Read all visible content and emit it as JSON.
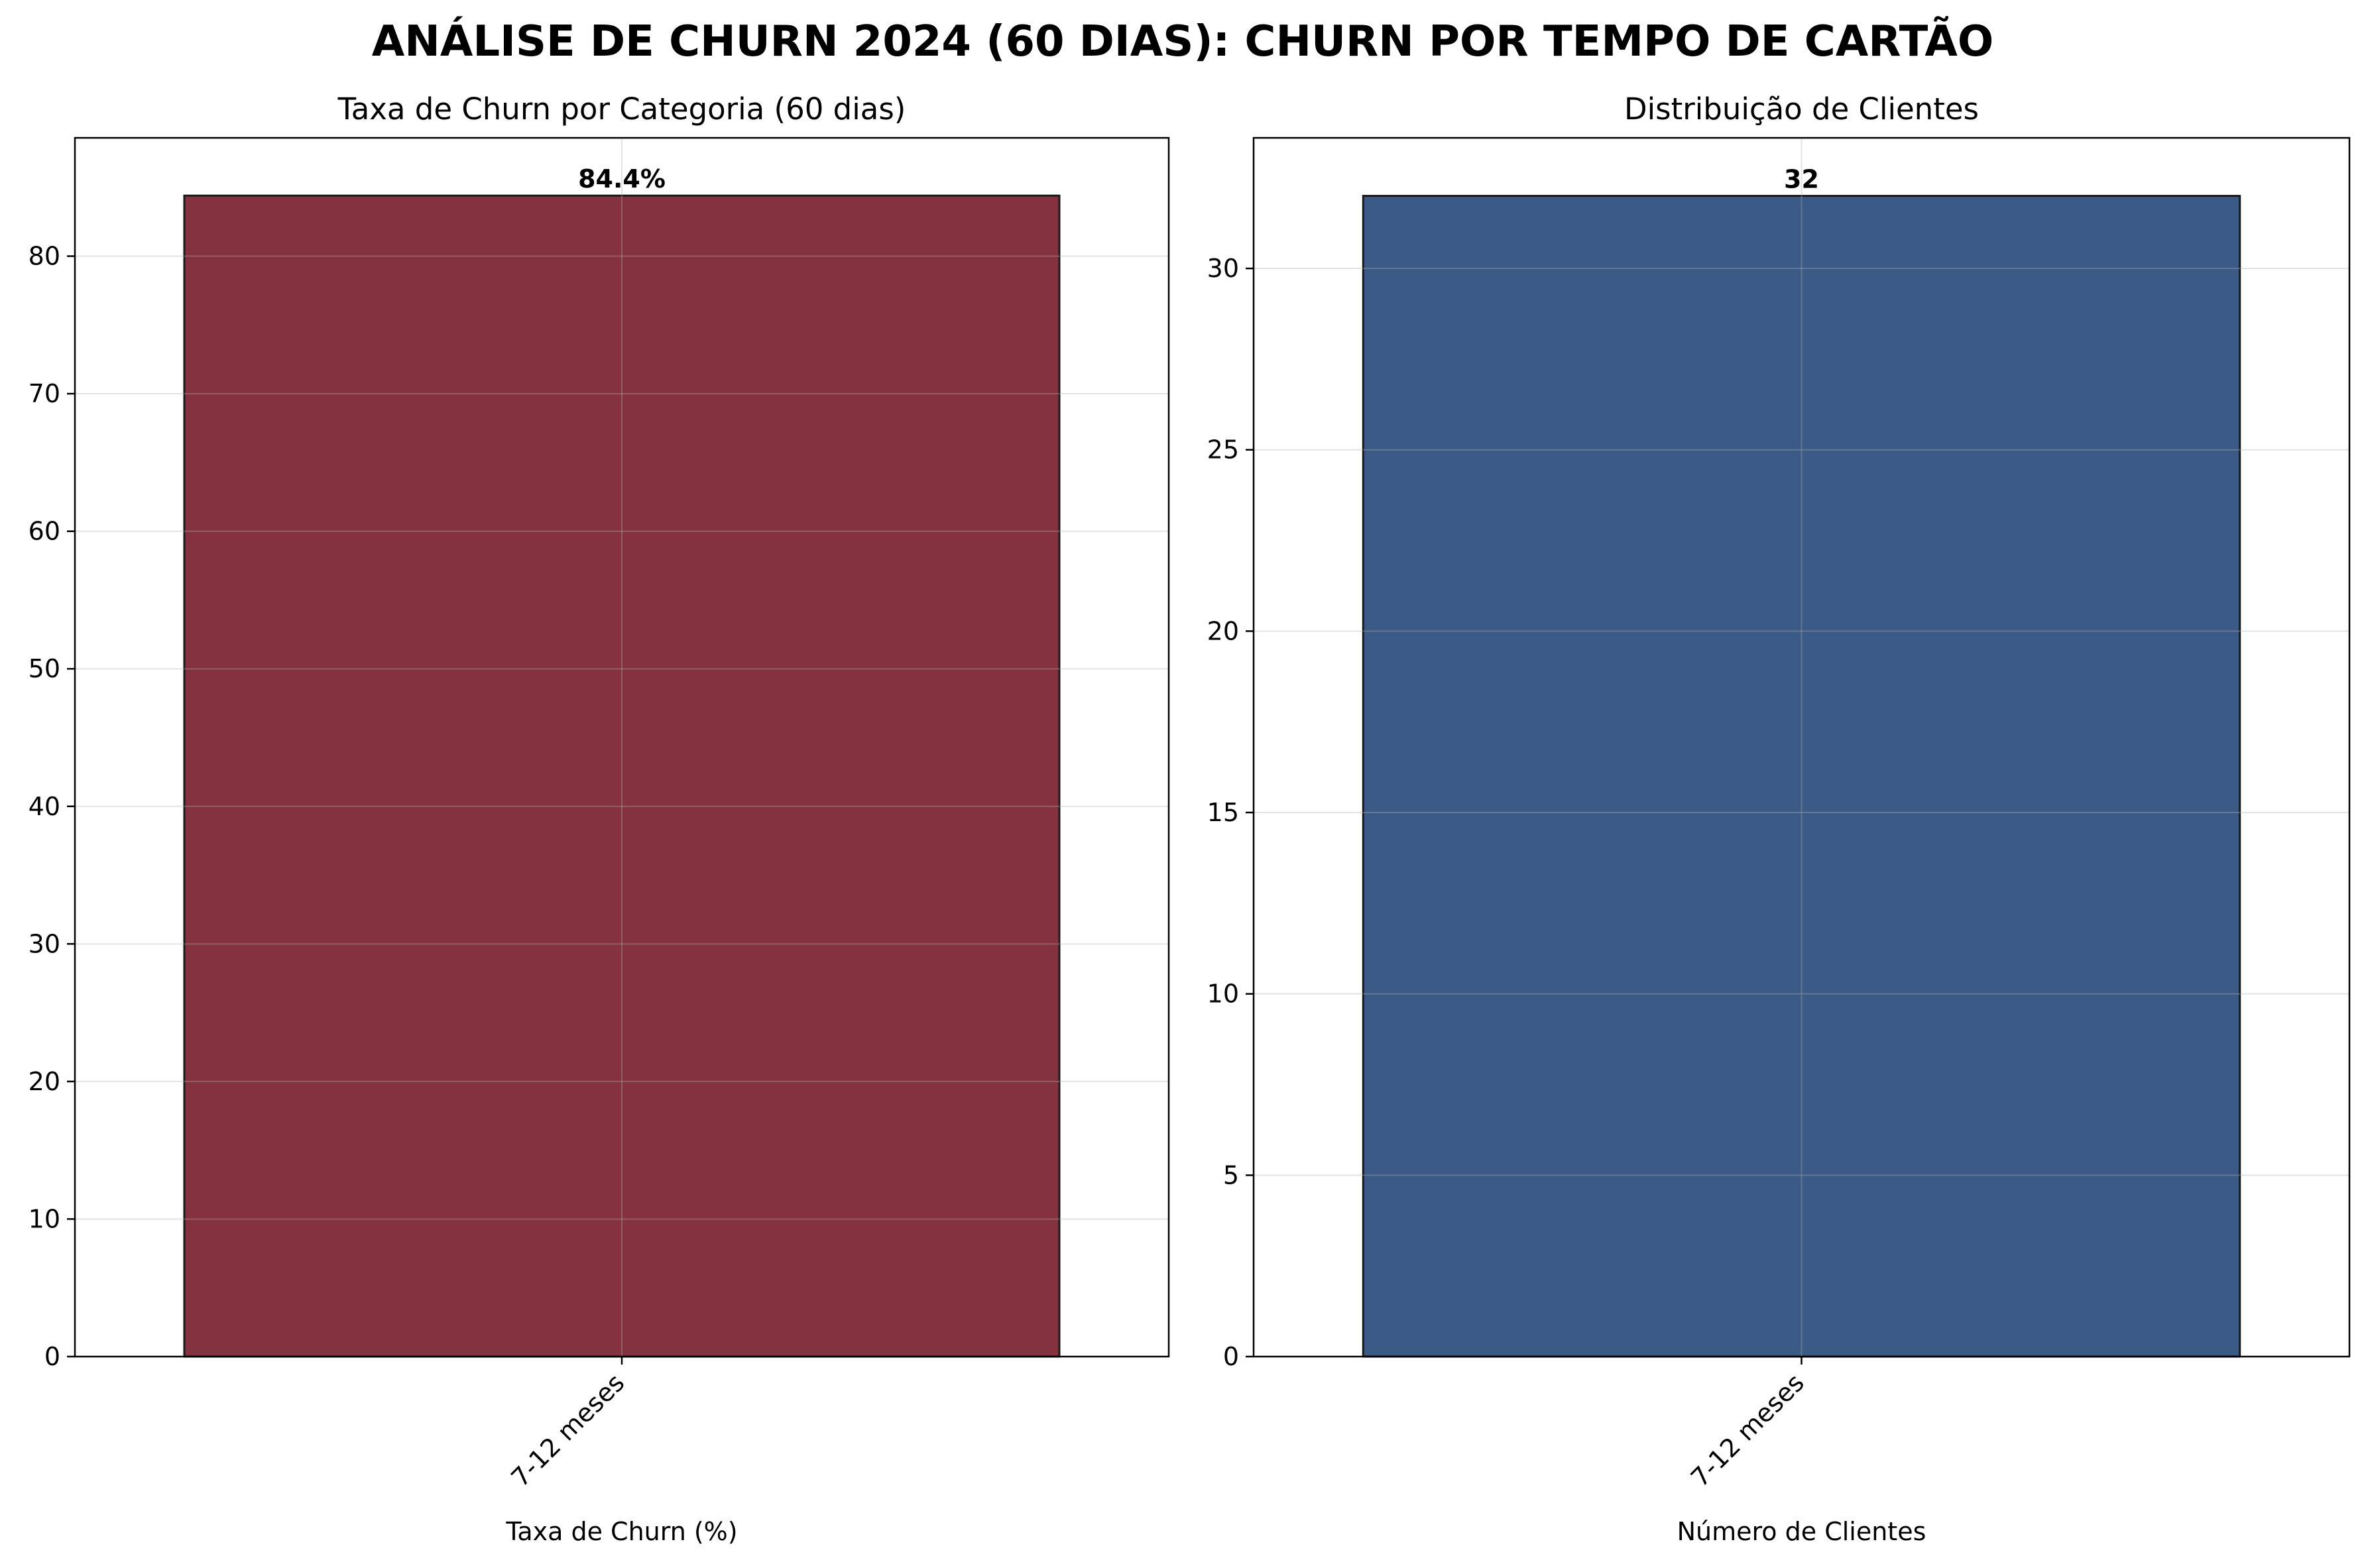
{
  "figure": {
    "suptitle": "ANÁLISE DE CHURN 2024 (60 DIAS): CHURN POR TEMPO DE CARTÃO"
  },
  "chart_data": [
    {
      "type": "bar",
      "title": "Taxa de Churn por Categoria (60 dias)",
      "xlabel": "Taxa de Churn (%)",
      "ylabel": "",
      "categories": [
        "7-12 meses"
      ],
      "values": [
        84.4
      ],
      "data_labels": [
        "84.4%"
      ],
      "ylim": [
        0,
        88.6
      ],
      "yticks": [
        0,
        10,
        20,
        30,
        40,
        50,
        60,
        70,
        80
      ],
      "grid": true,
      "bar_color": "#84323f",
      "edge_color": "#1a1a1a"
    },
    {
      "type": "bar",
      "title": "Distribuição de Clientes",
      "xlabel": "Número de Clientes",
      "ylabel": "",
      "categories": [
        "7-12 meses"
      ],
      "values": [
        32
      ],
      "data_labels": [
        "32"
      ],
      "ylim": [
        0,
        33.6
      ],
      "yticks": [
        0,
        5,
        10,
        15,
        20,
        25,
        30
      ],
      "grid": true,
      "bar_color": "#3a5985",
      "edge_color": "#1a1a1a"
    }
  ]
}
